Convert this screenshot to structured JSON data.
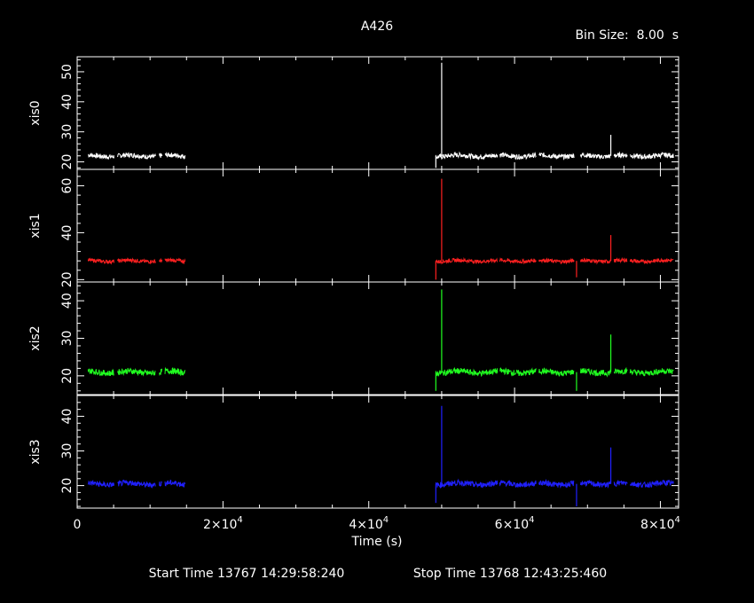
{
  "title": "A426",
  "bin_size_label": "Bin Size:  8.00  s",
  "start_time_label": "Start Time 13767 14:29:58:240",
  "stop_time_label": "Stop Time 13768 12:43:25:460",
  "colors": {
    "background": "#000000",
    "axes": "#ffffff"
  },
  "chart_data": {
    "type": "line",
    "title": "A426",
    "xlabel": "Time (s)",
    "xlim": [
      0,
      82500
    ],
    "x_ticks": [
      0,
      20000,
      40000,
      60000,
      80000
    ],
    "x_tick_labels": [
      "0",
      "2×10",
      "4×10",
      "6×10",
      "8×10"
    ],
    "x_tick_exponents": [
      "",
      "4",
      "4",
      "4",
      "4"
    ],
    "segments": [
      [
        1500,
        14800
      ],
      [
        49200,
        81800
      ]
    ],
    "gaps": [
      [
        5100,
        5500
      ],
      [
        10800,
        11200
      ],
      [
        11700,
        12000
      ],
      [
        57700,
        57900
      ],
      [
        63000,
        63300
      ],
      [
        68200,
        69000
      ],
      [
        73200,
        73600
      ],
      [
        75500,
        75800
      ]
    ],
    "series": [
      {
        "name": "xis0",
        "color": "#ffffff",
        "ylim": [
          17.5,
          55
        ],
        "y_ticks": [
          20,
          30,
          40,
          50
        ],
        "y_tick_labels": [
          "20",
          "30",
          "40",
          "50"
        ],
        "level": 22,
        "noise": 1.0,
        "spikes": [
          [
            49200,
            18
          ],
          [
            50000,
            53
          ],
          [
            73200,
            29
          ]
        ]
      },
      {
        "name": "xis1",
        "color": "#ff2020",
        "ylim": [
          19,
          67
        ],
        "y_ticks": [
          20,
          40,
          60
        ],
        "y_tick_labels": [
          "20",
          "40",
          "60"
        ],
        "level": 28,
        "noise": 1.0,
        "spikes": [
          [
            49200,
            20
          ],
          [
            50000,
            63
          ],
          [
            68500,
            21
          ],
          [
            73200,
            39
          ]
        ]
      },
      {
        "name": "xis2",
        "color": "#20ff20",
        "ylim": [
          15,
          45
        ],
        "y_ticks": [
          20,
          30,
          40
        ],
        "y_tick_labels": [
          "20",
          "30",
          "40"
        ],
        "level": 21,
        "noise": 1.0,
        "spikes": [
          [
            49200,
            16
          ],
          [
            50000,
            43
          ],
          [
            68500,
            16
          ],
          [
            73200,
            31
          ]
        ]
      },
      {
        "name": "xis3",
        "color": "#2020ff",
        "ylim": [
          13.5,
          46
        ],
        "y_ticks": [
          20,
          30,
          40
        ],
        "y_tick_labels": [
          "20",
          "30",
          "40"
        ],
        "level": 20.5,
        "noise": 1.0,
        "spikes": [
          [
            49200,
            15
          ],
          [
            50000,
            43
          ],
          [
            68500,
            14
          ],
          [
            73200,
            31
          ]
        ]
      }
    ]
  }
}
